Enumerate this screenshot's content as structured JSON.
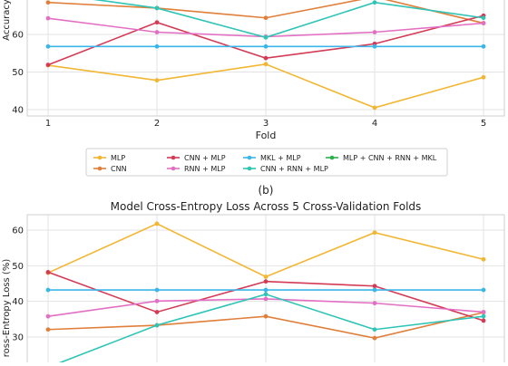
{
  "colors": {
    "MLP": "#f2b632",
    "CNN": "#e07f3a",
    "CNN + MLP": "#d43a54",
    "RNN + MLP": "#e36fc4",
    "MKL + MLP": "#3bb6e8",
    "CNN + RNN + MLP": "#2ec4b6",
    "MLP + CNN + RNN + MKL": "#2bb04a"
  },
  "legend": {
    "items": [
      "MLP",
      "CNN",
      "CNN + MLP",
      "RNN + MLP",
      "MKL + MLP",
      "CNN + RNN + MLP",
      "MLP + CNN + RNN + MKL"
    ]
  },
  "panel_b_label": "(b)",
  "chart_data": [
    {
      "type": "line",
      "title": "",
      "xlabel": "Fold",
      "ylabel": "Accuracy",
      "x": [
        1,
        2,
        3,
        4,
        5
      ],
      "xticks": [
        "1",
        "2",
        "3",
        "4",
        "5"
      ],
      "yticks": [
        "40",
        "50",
        "60"
      ],
      "ylim": [
        38,
        71
      ],
      "grid": true,
      "series": [
        {
          "name": "MLP",
          "values": [
            51.8,
            47.8,
            52.1,
            40.5,
            48.6
          ]
        },
        {
          "name": "CNN",
          "values": [
            68.5,
            67.0,
            64.4,
            70.0,
            63.0
          ]
        },
        {
          "name": "CNN + MLP",
          "values": [
            51.9,
            63.2,
            53.7,
            57.5,
            65.0
          ]
        },
        {
          "name": "RNN + MLP",
          "values": [
            64.3,
            60.6,
            59.4,
            60.6,
            63.0
          ]
        },
        {
          "name": "MKL + MLP",
          "values": [
            56.8,
            56.8,
            56.8,
            56.8,
            56.8
          ]
        },
        {
          "name": "CNN + RNN + MLP",
          "values": [
            71.0,
            67.0,
            59.2,
            68.5,
            64.4
          ]
        }
      ]
    },
    {
      "type": "line",
      "title": "Model Cross-Entropy Loss Across 5 Cross-Validation Folds",
      "xlabel": "",
      "ylabel": "ross-Entropy Loss (%)",
      "x": [
        1,
        2,
        3,
        4,
        5
      ],
      "yticks": [
        "30",
        "40",
        "50",
        "60"
      ],
      "ylim": [
        22,
        65
      ],
      "grid": true,
      "series": [
        {
          "name": "MLP",
          "values": [
            48.0,
            61.8,
            46.9,
            59.3,
            51.8
          ]
        },
        {
          "name": "CNN",
          "values": [
            32.1,
            33.3,
            35.8,
            29.7,
            36.9
          ]
        },
        {
          "name": "CNN + MLP",
          "values": [
            48.2,
            37.0,
            45.6,
            44.3,
            34.6
          ]
        },
        {
          "name": "RNN + MLP",
          "values": [
            35.8,
            40.1,
            40.7,
            39.5,
            37.0
          ]
        },
        {
          "name": "MKL + MLP",
          "values": [
            43.2,
            43.2,
            43.2,
            43.2,
            43.2
          ]
        },
        {
          "name": "CNN + RNN + MLP",
          "values": [
            21.5,
            33.3,
            42.0,
            32.1,
            35.8
          ]
        }
      ]
    }
  ]
}
